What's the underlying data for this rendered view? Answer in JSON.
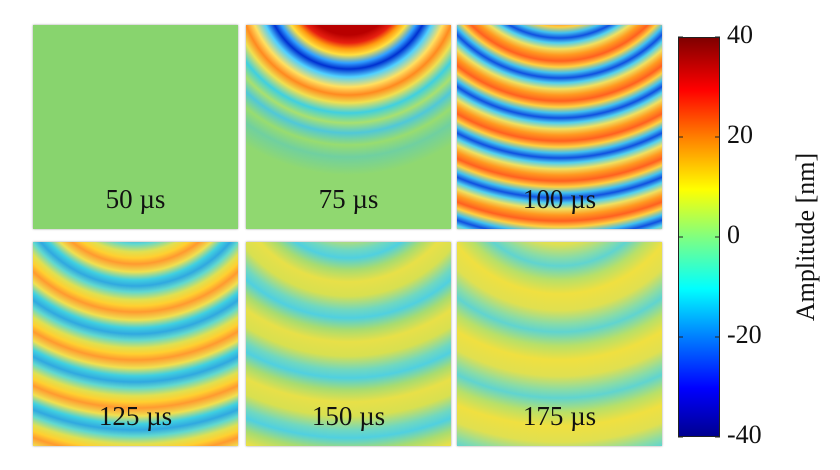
{
  "chart_data": {
    "type": "snapshot-panels",
    "panels": [
      {
        "label": "50 µs"
      },
      {
        "label": "75 µs"
      },
      {
        "label": "100 µs"
      },
      {
        "label": "125 µs"
      },
      {
        "label": "150 µs"
      },
      {
        "label": "175 µs"
      }
    ],
    "colorbar": {
      "label": "Amplitude [nm]",
      "lim": [
        -40,
        40
      ],
      "ticks": [
        -40,
        -20,
        0,
        20,
        40
      ]
    }
  }
}
